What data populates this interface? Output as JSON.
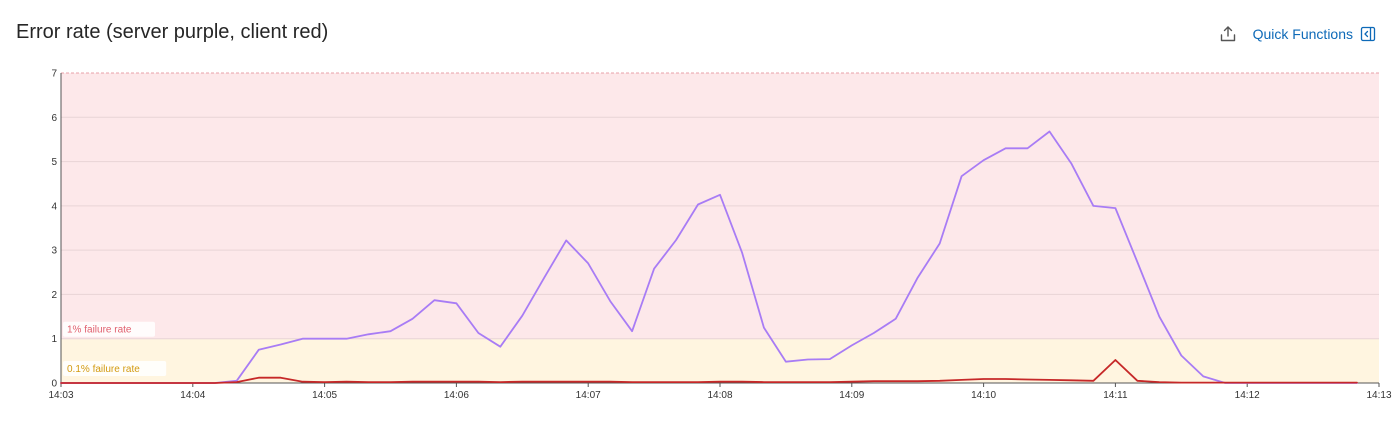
{
  "header": {
    "title": "Error rate (server purple, client red)",
    "quick_functions_label": "Quick Functions",
    "export_icon": "export-icon",
    "sidebar_icon": "panel-collapse-icon"
  },
  "chart_data": {
    "type": "line",
    "title": "Error rate (server purple, client red)",
    "xlabel": "",
    "ylabel": "",
    "x_ticks": [
      "14:03",
      "14:04",
      "14:05",
      "14:06",
      "14:07",
      "14:08",
      "14:09",
      "14:10",
      "14:11",
      "14:12",
      "14:13"
    ],
    "y_ticks": [
      "0",
      "1",
      "2",
      "3",
      "4",
      "5",
      "6",
      "7"
    ],
    "ylim": [
      0,
      7
    ],
    "grid": true,
    "bands": [
      {
        "label": "1% failure rate",
        "from": 1,
        "to": 7,
        "fill": "#fde8ea",
        "text_color": "#e0606e"
      },
      {
        "label": "0.1% failure rate",
        "from": 0,
        "to": 1,
        "fill": "#fff5e0",
        "text_color": "#d39a10"
      }
    ],
    "series": [
      {
        "color": "#a87cf5",
        "x": [
          "14:03",
          "14:03:10",
          "14:03:20",
          "14:03:30",
          "14:03:40",
          "14:03:50",
          "14:04",
          "14:04:10",
          "14:04:20",
          "14:04:30",
          "14:04:40",
          "14:04:50",
          "14:05",
          "14:05:10",
          "14:05:20",
          "14:05:30",
          "14:05:40",
          "14:05:50",
          "14:06",
          "14:06:10",
          "14:06:20",
          "14:06:30",
          "14:06:40",
          "14:06:50",
          "14:07",
          "14:07:10",
          "14:07:20",
          "14:07:30",
          "14:07:40",
          "14:07:50",
          "14:08",
          "14:08:10",
          "14:08:20",
          "14:08:30",
          "14:08:40",
          "14:08:50",
          "14:09",
          "14:09:10",
          "14:09:20",
          "14:09:30",
          "14:09:40",
          "14:09:50",
          "14:10",
          "14:10:10",
          "14:10:20",
          "14:10:30",
          "14:10:40",
          "14:10:50",
          "14:11",
          "14:11:10",
          "14:11:20",
          "14:11:30",
          "14:11:40",
          "14:11:50",
          "14:12",
          "14:12:10",
          "14:12:20",
          "14:12:30",
          "14:12:40",
          "14:12:50"
        ],
        "values": [
          0,
          0,
          0,
          0,
          0,
          0,
          0,
          0,
          0.05,
          0.75,
          0.87,
          1.0,
          1.0,
          1.0,
          1.1,
          1.17,
          1.45,
          1.87,
          1.8,
          1.13,
          0.82,
          1.52,
          2.38,
          3.22,
          2.7,
          1.85,
          1.17,
          2.58,
          3.23,
          4.03,
          4.25,
          2.95,
          1.25,
          0.48,
          0.53,
          0.54,
          0.85,
          1.13,
          1.45,
          2.38,
          3.15,
          4.67,
          5.03,
          5.3,
          5.3,
          5.68,
          4.95,
          4.0,
          3.95,
          2.73,
          1.5,
          0.62,
          0.15,
          0,
          0,
          0,
          0,
          0,
          0,
          0
        ]
      },
      {
        "color": "#c62828",
        "x": [
          "14:03",
          "14:03:10",
          "14:03:20",
          "14:03:30",
          "14:03:40",
          "14:03:50",
          "14:04",
          "14:04:10",
          "14:04:20",
          "14:04:30",
          "14:04:40",
          "14:04:50",
          "14:05",
          "14:05:10",
          "14:05:20",
          "14:05:30",
          "14:05:40",
          "14:05:50",
          "14:06",
          "14:06:10",
          "14:06:20",
          "14:06:30",
          "14:06:40",
          "14:06:50",
          "14:07",
          "14:07:10",
          "14:07:20",
          "14:07:30",
          "14:07:40",
          "14:07:50",
          "14:08",
          "14:08:10",
          "14:08:20",
          "14:08:30",
          "14:08:40",
          "14:08:50",
          "14:09",
          "14:09:10",
          "14:09:20",
          "14:09:30",
          "14:09:40",
          "14:09:50",
          "14:10",
          "14:10:10",
          "14:10:20",
          "14:10:30",
          "14:10:40",
          "14:10:50",
          "14:11",
          "14:11:10",
          "14:11:20",
          "14:11:30",
          "14:11:40",
          "14:11:50",
          "14:12",
          "14:12:10",
          "14:12:20",
          "14:12:30",
          "14:12:40",
          "14:12:50"
        ],
        "values": [
          0,
          0,
          0,
          0,
          0,
          0,
          0,
          0,
          0.02,
          0.12,
          0.12,
          0.03,
          0.02,
          0.03,
          0.02,
          0.02,
          0.03,
          0.03,
          0.03,
          0.03,
          0.02,
          0.03,
          0.03,
          0.03,
          0.03,
          0.03,
          0.02,
          0.02,
          0.02,
          0.02,
          0.03,
          0.03,
          0.02,
          0.02,
          0.02,
          0.02,
          0.03,
          0.04,
          0.04,
          0.04,
          0.05,
          0.07,
          0.09,
          0.09,
          0.08,
          0.07,
          0.06,
          0.05,
          0.52,
          0.05,
          0.02,
          0.01,
          0.01,
          0.01,
          0.01,
          0.01,
          0.01,
          0.01,
          0.01,
          0.01
        ]
      }
    ]
  }
}
